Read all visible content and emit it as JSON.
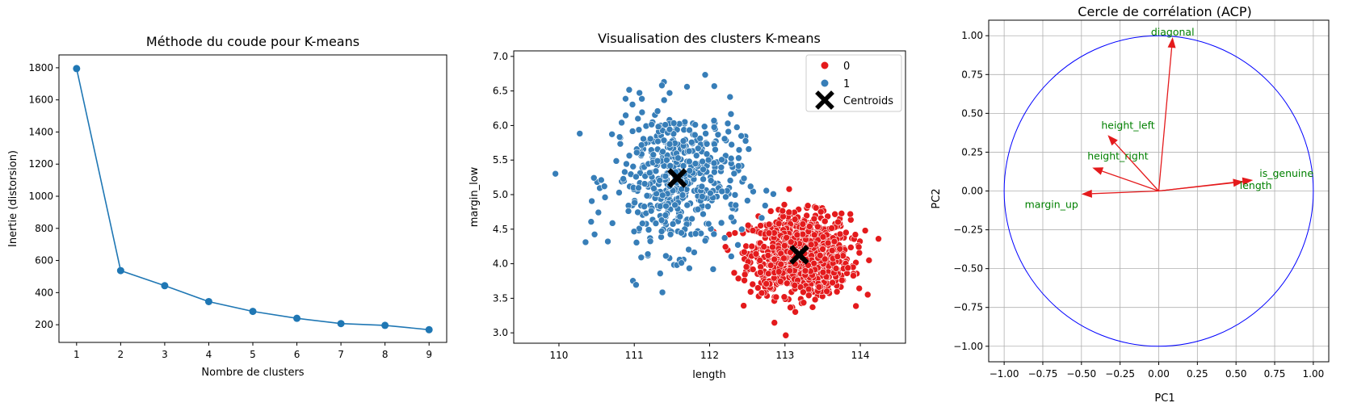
{
  "chart_data": [
    {
      "type": "line",
      "title": "Méthode du coude pour K-means",
      "xlabel": "Nombre de clusters",
      "ylabel": "Inertie (distorsion)",
      "x": [
        1,
        2,
        3,
        4,
        5,
        6,
        7,
        8,
        9
      ],
      "y": [
        1795,
        537,
        443,
        344,
        283,
        240,
        207,
        196,
        169
      ],
      "xticks": [
        1,
        2,
        3,
        4,
        5,
        6,
        7,
        8,
        9
      ],
      "yticks": [
        200,
        400,
        600,
        800,
        1000,
        1200,
        1400,
        1600,
        1800
      ],
      "xlim": [
        0.6,
        9.4
      ],
      "ylim": [
        90,
        1880
      ],
      "color": "#1f77b4",
      "grid": false
    },
    {
      "type": "scatter",
      "title": "Visualisation des clusters K-means",
      "xlabel": "length",
      "ylabel": "margin_low",
      "xticks": [
        110,
        111,
        112,
        113,
        114
      ],
      "yticks": [
        3.0,
        3.5,
        4.0,
        4.5,
        5.0,
        5.5,
        6.0,
        6.5,
        7.0
      ],
      "xlim": [
        109.4,
        114.6
      ],
      "ylim": [
        2.85,
        7.08
      ],
      "legend": {
        "position": "top-right",
        "entries": [
          "0",
          "1",
          "Centroids"
        ]
      },
      "series": [
        {
          "name": "0",
          "color": "#e41a1c",
          "center": [
            113.2,
            4.13
          ],
          "spread": [
            0.33,
            0.29
          ],
          "count": 1000
        },
        {
          "name": "1",
          "color": "#377eb8",
          "center": [
            111.57,
            5.22
          ],
          "spread": [
            0.43,
            0.52
          ],
          "count": 500
        }
      ],
      "centroids": {
        "name": "Centroids",
        "color": "#000000",
        "points": [
          [
            111.57,
            5.24
          ],
          [
            113.19,
            4.13
          ]
        ]
      },
      "grid": false
    },
    {
      "type": "vector",
      "title": "Cercle de corrélation (ACP)",
      "xlabel": "PC1",
      "ylabel": "PC2",
      "xticks": [
        -1.0,
        -0.75,
        -0.5,
        -0.25,
        0.0,
        0.25,
        0.5,
        0.75,
        1.0
      ],
      "yticks": [
        -1.0,
        -0.75,
        -0.5,
        -0.25,
        0.0,
        0.25,
        0.5,
        0.75,
        1.0
      ],
      "xlim": [
        -1.1,
        1.1
      ],
      "ylim": [
        -1.1,
        1.1
      ],
      "circle_color": "#0000ff",
      "arrow_color": "#e41a1c",
      "label_color": "#008000",
      "grid": true,
      "vectors": [
        {
          "name": "diagonal",
          "x": 0.09,
          "y": 0.99
        },
        {
          "name": "height_left",
          "x": -0.33,
          "y": 0.36
        },
        {
          "name": "height_right",
          "x": -0.43,
          "y": 0.15
        },
        {
          "name": "is_genuine",
          "x": 0.61,
          "y": 0.07
        },
        {
          "name": "length",
          "x": 0.55,
          "y": 0.06
        },
        {
          "name": "margin_up",
          "x": -0.5,
          "y": -0.02
        }
      ]
    }
  ]
}
